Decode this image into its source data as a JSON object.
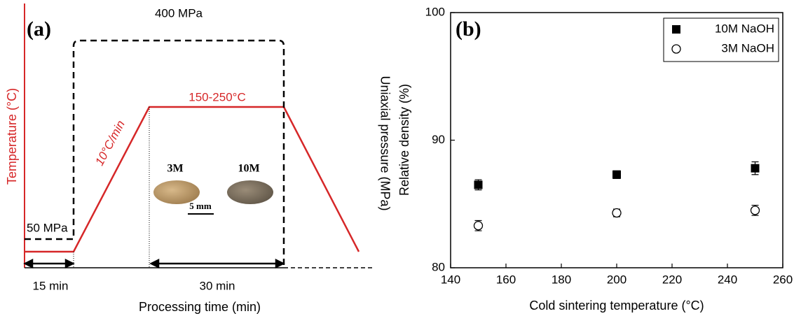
{
  "diagram": {
    "panel_label": "(a)",
    "y_label": "Temperature (°C)",
    "y2_label": "Uniaxial pressure (MPa)",
    "x_label": "Processing time (min)",
    "annotations": {
      "high_pressure": "400 MPa",
      "low_pressure": "50 MPa",
      "temperature": "150-250°C",
      "ramp": "10°C/min",
      "first_interval": "15 min",
      "second_interval": "30 min",
      "sample_3m": "3M",
      "sample_10m": "10M",
      "scale_bar": "5 mm"
    }
  },
  "chart_data": {
    "type": "scatter",
    "panel_label": "(b)",
    "x_label": "Cold sintering temperature (°C)",
    "y_label": "Relative density (%)",
    "xlim": [
      140,
      260
    ],
    "xticks": [
      140,
      160,
      180,
      200,
      220,
      240,
      260
    ],
    "ylim": [
      80,
      100
    ],
    "yticks": [
      80,
      90,
      100
    ],
    "legend": "upper right",
    "series": [
      {
        "name": "10M NaOH",
        "color": "#000000",
        "marker": "filled-square",
        "x": [
          150,
          200,
          250
        ],
        "values": [
          86.5,
          87.3,
          87.8
        ],
        "errors": [
          0.4,
          0.3,
          0.5
        ]
      },
      {
        "name": "3M NaOH",
        "color": "#000000",
        "marker": "open-circle",
        "x": [
          150,
          200,
          250
        ],
        "values": [
          83.3,
          84.3,
          84.5
        ],
        "errors": [
          0.4,
          0.3,
          0.4
        ]
      }
    ]
  }
}
